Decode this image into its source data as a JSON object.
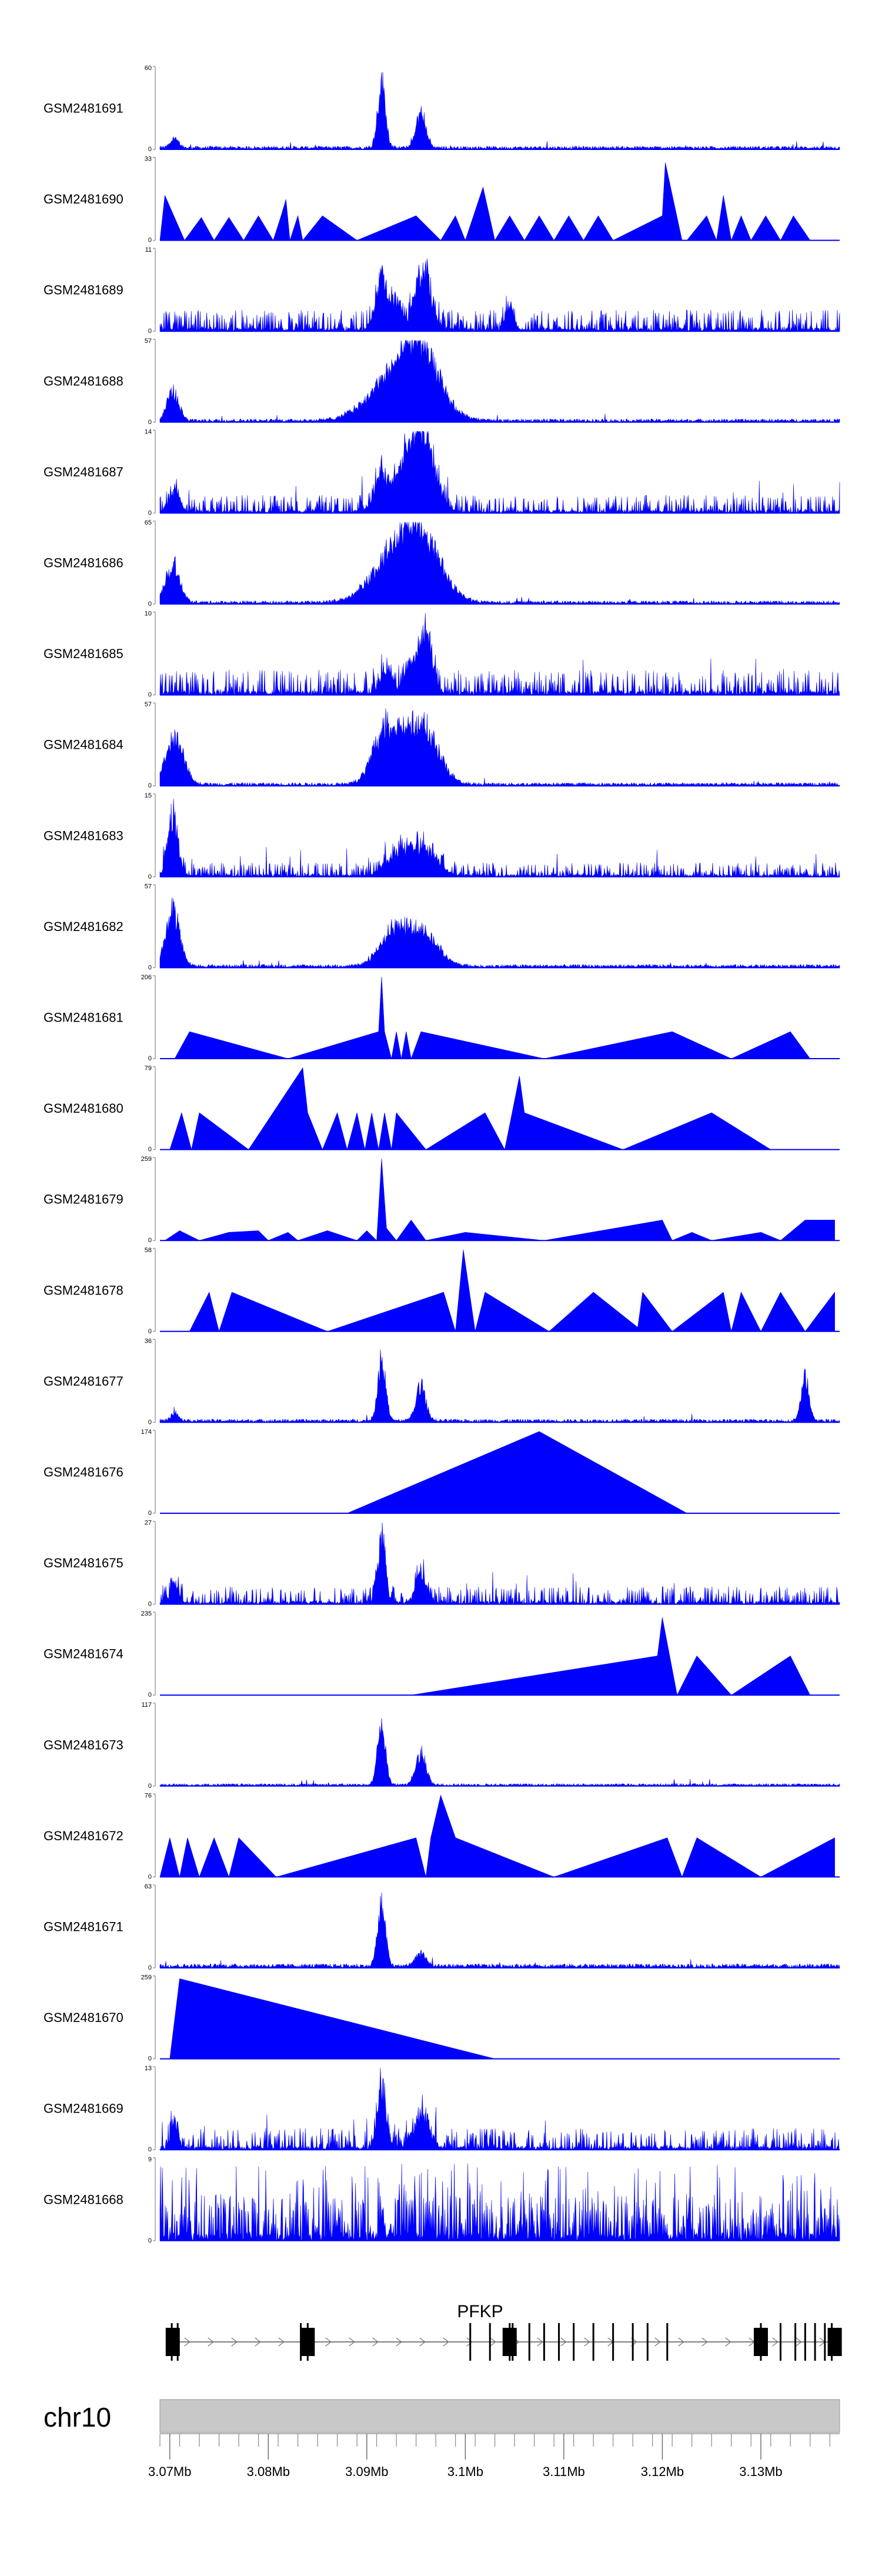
{
  "chart_data": {
    "type": "area",
    "title": "",
    "xlabel": "",
    "ylabel": "",
    "chromosome": "chr10",
    "gene": {
      "name": "PFKP",
      "start": 3.07,
      "end": 3.138,
      "exons": [
        3.0702,
        3.0708,
        3.0833,
        3.084,
        3.1005,
        3.1025,
        3.1045,
        3.1048,
        3.1065,
        3.108,
        3.1095,
        3.111,
        3.113,
        3.115,
        3.117,
        3.1185,
        3.1205,
        3.13,
        3.132,
        3.1335,
        3.1345,
        3.1355,
        3.1365,
        3.1372
      ],
      "thick_exons": [
        3.0703,
        3.084,
        3.1045,
        3.13,
        3.1375
      ]
    },
    "x_axis": {
      "range": [
        3.069,
        3.138
      ],
      "unit": "Mb",
      "ticks": [
        "3.07Mb",
        "3.08Mb",
        "3.09Mb",
        "3.1Mb",
        "3.11Mb",
        "3.12Mb",
        "3.13Mb"
      ],
      "tick_values": [
        3.07,
        3.08,
        3.09,
        3.1,
        3.11,
        3.12,
        3.13
      ]
    },
    "series": [
      {
        "name": "GSM2481691",
        "ymax": 60,
        "ymin": 0,
        "kind": "peaks",
        "baseline": 0.04,
        "peaks": [
          [
            3.0915,
            1.0,
            0.0004
          ],
          [
            3.0955,
            0.55,
            0.0005
          ],
          [
            3.0705,
            0.15,
            0.0004
          ]
        ]
      },
      {
        "name": "GSM2481690",
        "ymax": 33,
        "ymin": 0,
        "kind": "sparse",
        "points": [
          [
            3.069,
            0
          ],
          [
            3.0695,
            0.55
          ],
          [
            3.0715,
            0
          ],
          [
            3.0732,
            0.28
          ],
          [
            3.0745,
            0
          ],
          [
            3.076,
            0.28
          ],
          [
            3.0775,
            0
          ],
          [
            3.079,
            0.3
          ],
          [
            3.0805,
            0
          ],
          [
            3.0813,
            0.3
          ],
          [
            3.0818,
            0.5
          ],
          [
            3.0822,
            0
          ],
          [
            3.083,
            0.3
          ],
          [
            3.0835,
            0
          ],
          [
            3.0855,
            0.3
          ],
          [
            3.089,
            0
          ],
          [
            3.095,
            0.3
          ],
          [
            3.0975,
            0
          ],
          [
            3.099,
            0.3
          ],
          [
            3.1,
            0
          ],
          [
            3.1018,
            0.65
          ],
          [
            3.103,
            0
          ],
          [
            3.1045,
            0.3
          ],
          [
            3.106,
            0
          ],
          [
            3.1075,
            0.3
          ],
          [
            3.109,
            0
          ],
          [
            3.1105,
            0.3
          ],
          [
            3.112,
            0
          ],
          [
            3.1135,
            0.3
          ],
          [
            3.115,
            0
          ],
          [
            3.12,
            0.3
          ],
          [
            3.122,
            0
          ],
          [
            3.1203,
            0.95
          ],
          [
            3.1225,
            0
          ],
          [
            3.1245,
            0.3
          ],
          [
            3.1255,
            0
          ],
          [
            3.1262,
            0.55
          ],
          [
            3.127,
            0
          ],
          [
            3.128,
            0.3
          ],
          [
            3.129,
            0
          ],
          [
            3.1305,
            0.3
          ],
          [
            3.132,
            0
          ],
          [
            3.1333,
            0.3
          ],
          [
            3.135,
            0
          ],
          [
            3.1375,
            0
          ]
        ]
      },
      {
        "name": "GSM2481689",
        "ymax": 11,
        "ymin": 0,
        "kind": "noisy",
        "baseline": 0.12,
        "peaks": [
          [
            3.0915,
            0.75,
            0.0006
          ],
          [
            3.0957,
            0.95,
            0.0008
          ],
          [
            3.093,
            0.45,
            0.0005
          ],
          [
            3.1045,
            0.35,
            0.0004
          ]
        ]
      },
      {
        "name": "GSM2481688",
        "ymax": 57,
        "ymin": 0,
        "kind": "peaks",
        "baseline": 0.04,
        "peaks": [
          [
            3.0703,
            0.45,
            0.0006
          ],
          [
            3.0925,
            0.55,
            0.0025
          ],
          [
            3.0955,
            0.9,
            0.002
          ]
        ]
      },
      {
        "name": "GSM2481687",
        "ymax": 14,
        "ymin": 0,
        "kind": "noisy",
        "baseline": 0.1,
        "peaks": [
          [
            3.0915,
            0.5,
            0.0007
          ],
          [
            3.094,
            0.6,
            0.0012
          ],
          [
            3.0958,
            0.95,
            0.0012
          ],
          [
            3.0705,
            0.3,
            0.0005
          ]
        ]
      },
      {
        "name": "GSM2481686",
        "ymax": 65,
        "ymin": 0,
        "kind": "peaks",
        "baseline": 0.04,
        "peaks": [
          [
            3.0703,
            0.6,
            0.0007
          ],
          [
            3.0925,
            0.6,
            0.0022
          ],
          [
            3.0955,
            0.95,
            0.002
          ]
        ]
      },
      {
        "name": "GSM2481685",
        "ymax": 10,
        "ymin": 0,
        "kind": "noisy",
        "baseline": 0.14,
        "peaks": [
          [
            3.096,
            0.95,
            0.0006
          ],
          [
            3.0945,
            0.45,
            0.0006
          ],
          [
            3.092,
            0.35,
            0.0006
          ]
        ]
      },
      {
        "name": "GSM2481684",
        "ymax": 57,
        "ymin": 0,
        "kind": "peaks",
        "baseline": 0.04,
        "peaks": [
          [
            3.0705,
            0.7,
            0.0009
          ],
          [
            3.092,
            0.85,
            0.0013
          ],
          [
            3.0955,
            0.95,
            0.0016
          ]
        ]
      },
      {
        "name": "GSM2481683",
        "ymax": 15,
        "ymin": 0,
        "kind": "noisy",
        "baseline": 0.08,
        "peaks": [
          [
            3.0703,
            0.95,
            0.0005
          ],
          [
            3.0955,
            0.4,
            0.0015
          ],
          [
            3.093,
            0.25,
            0.0012
          ]
        ]
      },
      {
        "name": "GSM2481682",
        "ymax": 57,
        "ymin": 0,
        "kind": "peaks",
        "baseline": 0.04,
        "peaks": [
          [
            3.0703,
            0.85,
            0.0007
          ],
          [
            3.0925,
            0.5,
            0.0013
          ],
          [
            3.0955,
            0.55,
            0.0016
          ]
        ]
      },
      {
        "name": "GSM2481681",
        "ymax": 206,
        "ymin": 0,
        "kind": "sparse",
        "points": [
          [
            3.0705,
            0
          ],
          [
            3.072,
            0.33
          ],
          [
            3.082,
            0
          ],
          [
            3.0912,
            0.33
          ],
          [
            3.0915,
            1.0
          ],
          [
            3.0918,
            0.33
          ],
          [
            3.0925,
            0
          ],
          [
            3.093,
            0.33
          ],
          [
            3.0935,
            0
          ],
          [
            3.094,
            0.33
          ],
          [
            3.0945,
            0
          ],
          [
            3.0955,
            0.33
          ],
          [
            3.108,
            0
          ],
          [
            3.121,
            0.33
          ],
          [
            3.127,
            0
          ],
          [
            3.133,
            0.33
          ],
          [
            3.135,
            0
          ]
        ]
      },
      {
        "name": "GSM2481680",
        "ymax": 79,
        "ymin": 0,
        "kind": "sparse",
        "points": [
          [
            3.07,
            0
          ],
          [
            3.0712,
            0.45
          ],
          [
            3.0722,
            0
          ],
          [
            3.073,
            0.45
          ],
          [
            3.078,
            0
          ],
          [
            3.084,
            0.45
          ],
          [
            3.0835,
            1.0
          ],
          [
            3.0855,
            0
          ],
          [
            3.087,
            0.45
          ],
          [
            3.088,
            0
          ],
          [
            3.089,
            0.45
          ],
          [
            3.0898,
            0
          ],
          [
            3.0905,
            0.45
          ],
          [
            3.0912,
            0
          ],
          [
            3.0918,
            0.45
          ],
          [
            3.0925,
            0
          ],
          [
            3.093,
            0.45
          ],
          [
            3.096,
            0
          ],
          [
            3.102,
            0.45
          ],
          [
            3.104,
            0
          ],
          [
            3.1055,
            0.9
          ],
          [
            3.106,
            0.45
          ],
          [
            3.116,
            0
          ],
          [
            3.125,
            0.45
          ],
          [
            3.131,
            0
          ]
        ]
      },
      {
        "name": "GSM2481679",
        "ymax": 259,
        "ymin": 0,
        "kind": "sparse",
        "points": [
          [
            3.0695,
            0
          ],
          [
            3.071,
            0.12
          ],
          [
            3.073,
            0
          ],
          [
            3.076,
            0.1
          ],
          [
            3.079,
            0.12
          ],
          [
            3.08,
            0
          ],
          [
            3.082,
            0.1
          ],
          [
            3.083,
            0
          ],
          [
            3.086,
            0.12
          ],
          [
            3.089,
            0
          ],
          [
            3.09,
            0.12
          ],
          [
            3.091,
            0
          ],
          [
            3.0915,
            1.0
          ],
          [
            3.092,
            0.15
          ],
          [
            3.093,
            0
          ],
          [
            3.0945,
            0.25
          ],
          [
            3.096,
            0
          ],
          [
            3.1,
            0.1
          ],
          [
            3.108,
            0
          ],
          [
            3.12,
            0.25
          ],
          [
            3.121,
            0
          ],
          [
            3.123,
            0.1
          ],
          [
            3.125,
            0
          ],
          [
            3.13,
            0.1
          ],
          [
            3.132,
            0
          ],
          [
            3.1345,
            0.25
          ],
          [
            3.1375,
            0.25
          ]
        ]
      },
      {
        "name": "GSM2481678",
        "ymax": 58,
        "ymin": 0,
        "kind": "sparse",
        "points": [
          [
            3.072,
            0
          ],
          [
            3.074,
            0.48
          ],
          [
            3.075,
            0
          ],
          [
            3.0763,
            0.48
          ],
          [
            3.086,
            0
          ],
          [
            3.0978,
            0.48
          ],
          [
            3.099,
            0
          ],
          [
            3.0998,
            1.0
          ],
          [
            3.101,
            0
          ],
          [
            3.102,
            0.48
          ],
          [
            3.1085,
            0
          ],
          [
            3.113,
            0.48
          ],
          [
            3.1175,
            0.05
          ],
          [
            3.118,
            0.48
          ],
          [
            3.121,
            0
          ],
          [
            3.1262,
            0.48
          ],
          [
            3.127,
            0
          ],
          [
            3.128,
            0.48
          ],
          [
            3.13,
            0
          ],
          [
            3.132,
            0.48
          ],
          [
            3.1345,
            0
          ],
          [
            3.1375,
            0.48
          ]
        ]
      },
      {
        "name": "GSM2481677",
        "ymax": 36,
        "ymin": 0,
        "kind": "peaks",
        "baseline": 0.04,
        "peaks": [
          [
            3.0915,
            0.95,
            0.0004
          ],
          [
            3.0955,
            0.55,
            0.0005
          ],
          [
            3.1345,
            0.65,
            0.0004
          ],
          [
            3.0705,
            0.12,
            0.0004
          ]
        ]
      },
      {
        "name": "GSM2481676",
        "ymax": 174,
        "ymin": 0,
        "kind": "sparse",
        "points": [
          [
            3.088,
            0
          ],
          [
            3.1075,
            1.0
          ],
          [
            3.1225,
            0
          ]
        ]
      },
      {
        "name": "GSM2481675",
        "ymax": 27,
        "ymin": 0,
        "kind": "noisy",
        "baseline": 0.1,
        "peaks": [
          [
            3.0915,
            0.95,
            0.0004
          ],
          [
            3.0955,
            0.45,
            0.0005
          ],
          [
            3.0705,
            0.3,
            0.0004
          ]
        ]
      },
      {
        "name": "GSM2481674",
        "ymax": 235,
        "ymin": 0,
        "kind": "sparse",
        "points": [
          [
            3.0945,
            0
          ],
          [
            3.1195,
            0.48
          ],
          [
            3.12,
            0.95
          ],
          [
            3.1215,
            0
          ],
          [
            3.1235,
            0.48
          ],
          [
            3.127,
            0
          ],
          [
            3.133,
            0.48
          ],
          [
            3.135,
            0
          ]
        ]
      },
      {
        "name": "GSM2481673",
        "ymax": 117,
        "ymin": 0,
        "kind": "peaks",
        "baseline": 0.03,
        "peaks": [
          [
            3.0915,
            0.95,
            0.0004
          ],
          [
            3.0955,
            0.5,
            0.0005
          ]
        ]
      },
      {
        "name": "GSM2481672",
        "ymax": 76,
        "ymin": 0,
        "kind": "sparse",
        "points": [
          [
            3.069,
            0
          ],
          [
            3.07,
            0.48
          ],
          [
            3.071,
            0
          ],
          [
            3.0718,
            0.48
          ],
          [
            3.073,
            0
          ],
          [
            3.0745,
            0.48
          ],
          [
            3.076,
            0
          ],
          [
            3.077,
            0.48
          ],
          [
            3.0808,
            0
          ],
          [
            3.095,
            0.48
          ],
          [
            3.096,
            0
          ],
          [
            3.0965,
            0.48
          ],
          [
            3.0975,
            1.0
          ],
          [
            3.099,
            0.48
          ],
          [
            3.109,
            0
          ],
          [
            3.1205,
            0.48
          ],
          [
            3.122,
            0
          ],
          [
            3.1235,
            0.48
          ],
          [
            3.13,
            0
          ],
          [
            3.1375,
            0.48
          ]
        ]
      },
      {
        "name": "GSM2481671",
        "ymax": 63,
        "ymin": 0,
        "kind": "peaks",
        "baseline": 0.05,
        "peaks": [
          [
            3.0915,
            0.95,
            0.0004
          ],
          [
            3.0955,
            0.2,
            0.0005
          ]
        ]
      },
      {
        "name": "GSM2481670",
        "ymax": 259,
        "ymin": 0,
        "kind": "sparse",
        "points": [
          [
            3.07,
            0
          ],
          [
            3.071,
            0.98
          ],
          [
            3.103,
            0
          ]
        ]
      },
      {
        "name": "GSM2481669",
        "ymax": 13,
        "ymin": 0,
        "kind": "noisy",
        "baseline": 0.12,
        "peaks": [
          [
            3.0915,
            0.95,
            0.0004
          ],
          [
            3.0955,
            0.5,
            0.0008
          ],
          [
            3.0705,
            0.35,
            0.0004
          ]
        ]
      },
      {
        "name": "GSM2481668",
        "ymax": 9,
        "ymin": 0,
        "kind": "dense",
        "baseline": 0.5
      }
    ]
  }
}
